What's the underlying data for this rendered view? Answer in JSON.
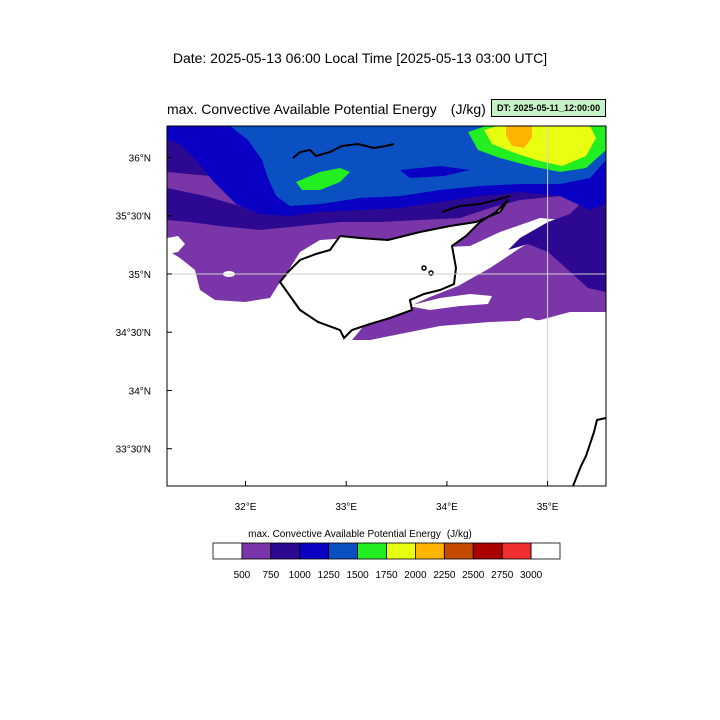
{
  "header": {
    "date_line": "Date: 2025-05-13  06:00 Local Time [2025-05-13  03:00 UTC]",
    "plot_title": "max. Convective Available Potential Energy",
    "plot_units": "(J/kg)",
    "dt_badge": "DT: 2025-05-11_12:00:00"
  },
  "map": {
    "lon_ticks": [
      "32°E",
      "33°E",
      "34°E",
      "35°E"
    ],
    "lat_ticks": [
      "36°N",
      "35°30'N",
      "35°N",
      "34°30'N",
      "34°N",
      "33°30'N"
    ],
    "lon_range": [
      31.22,
      35.58
    ],
    "lat_range": [
      33.18,
      36.27
    ]
  },
  "legend": {
    "title": "max. Convective Available Potential Energy",
    "units": "(J/kg)",
    "levels": [
      "500",
      "750",
      "1000",
      "1250",
      "1500",
      "1750",
      "2000",
      "2250",
      "2500",
      "2750",
      "3000"
    ],
    "colors": [
      "#ffffff",
      "#7a35a8",
      "#2d0891",
      "#0a00c4",
      "#0a50c2",
      "#22ee22",
      "#e8ff12",
      "#ffb400",
      "#c44a00",
      "#aa0000",
      "#f03030",
      "#ffffff"
    ]
  }
}
